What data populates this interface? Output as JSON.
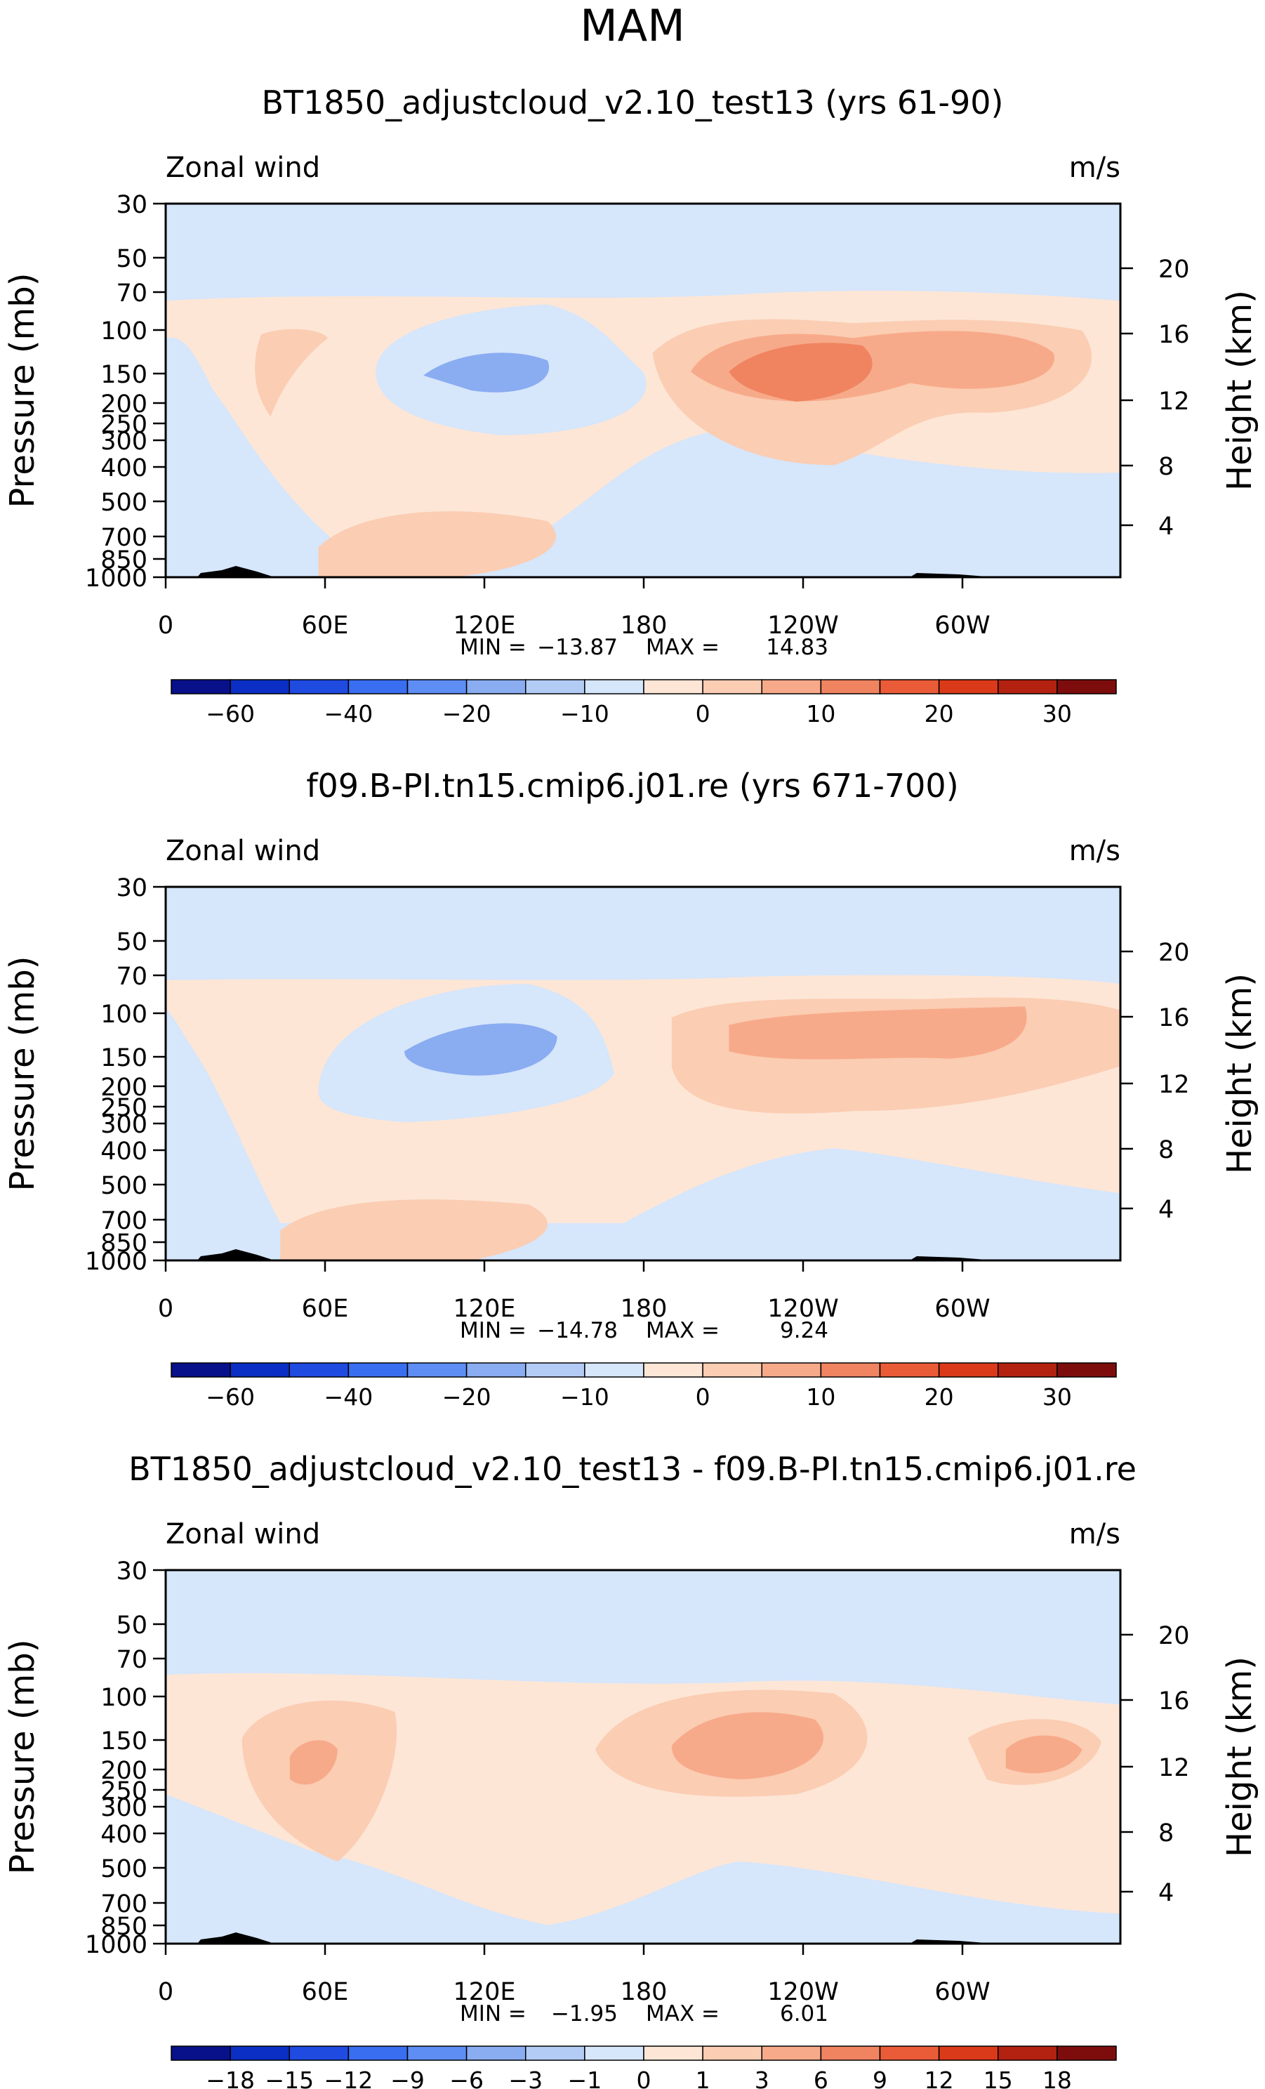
{
  "page_title": "MAM",
  "chart_data": [
    {
      "type": "heatmap",
      "title": "BT1850_adjustcloud_v2.10_test13 (yrs 61-90)",
      "left_label": "Zonal wind",
      "right_label": "m/s",
      "xlabel": "",
      "ylabel": "Pressure (mb)",
      "ylabel_right": "Height (km)",
      "x_ticks": [
        "0",
        "60E",
        "120E",
        "180",
        "120W",
        "60W"
      ],
      "y_ticks": [
        "30",
        "50",
        "70",
        "100",
        "150",
        "200",
        "250",
        "300",
        "400",
        "500",
        "700",
        "850",
        "1000"
      ],
      "y_ticks_right": [
        "20",
        "16",
        "12",
        "8",
        "4"
      ],
      "stats": {
        "min_label": "MIN =",
        "min": "−13.87",
        "max_label": "MAX =",
        "max": "14.83"
      },
      "colorbar_labels": [
        "−60",
        "−40",
        "−20",
        "−10",
        "0",
        "10",
        "20",
        "30"
      ]
    },
    {
      "type": "heatmap",
      "title": "f09.B-PI.tn15.cmip6.j01.re (yrs 671-700)",
      "left_label": "Zonal wind",
      "right_label": "m/s",
      "xlabel": "",
      "ylabel": "Pressure (mb)",
      "ylabel_right": "Height (km)",
      "x_ticks": [
        "0",
        "60E",
        "120E",
        "180",
        "120W",
        "60W"
      ],
      "y_ticks": [
        "30",
        "50",
        "70",
        "100",
        "150",
        "200",
        "250",
        "300",
        "400",
        "500",
        "700",
        "850",
        "1000"
      ],
      "y_ticks_right": [
        "20",
        "16",
        "12",
        "8",
        "4"
      ],
      "stats": {
        "min_label": "MIN =",
        "min": "−14.78",
        "max_label": "MAX =",
        "max": "9.24"
      },
      "colorbar_labels": [
        "−60",
        "−40",
        "−20",
        "−10",
        "0",
        "10",
        "20",
        "30"
      ]
    },
    {
      "type": "heatmap",
      "title": "BT1850_adjustcloud_v2.10_test13 - f09.B-PI.tn15.cmip6.j01.re",
      "left_label": "Zonal wind",
      "right_label": "m/s",
      "xlabel": "",
      "ylabel": "Pressure (mb)",
      "ylabel_right": "Height (km)",
      "x_ticks": [
        "0",
        "60E",
        "120E",
        "180",
        "120W",
        "60W"
      ],
      "y_ticks": [
        "30",
        "50",
        "70",
        "100",
        "150",
        "200",
        "250",
        "300",
        "400",
        "500",
        "700",
        "850",
        "1000"
      ],
      "y_ticks_right": [
        "20",
        "16",
        "12",
        "8",
        "4"
      ],
      "stats": {
        "min_label": "MIN =",
        "min": "−1.95",
        "max_label": "MAX =",
        "max": "6.01"
      },
      "colorbar_labels": [
        "−18",
        "−15",
        "−12",
        "−9",
        "−6",
        "−3",
        "−1",
        "0",
        "1",
        "3",
        "6",
        "9",
        "12",
        "15",
        "18"
      ]
    }
  ],
  "colors": {
    "colorbar": [
      "#08108a",
      "#0b2fc4",
      "#1f4be0",
      "#3a6ef0",
      "#5e8ef3",
      "#8aacf1",
      "#b3ccf5",
      "#d6e6fb",
      "#fde6d6",
      "#fbcdb3",
      "#f7aa8a",
      "#f08460",
      "#ea5b38",
      "#da3a1a",
      "#b32211",
      "#7d0d0d"
    ],
    "contour_light_blue": "#d6e6fb",
    "contour_blue": "#b3ccf5",
    "contour_mid_blue": "#8aacf1",
    "contour_light_orange": "#fde6d6",
    "contour_orange": "#fbcdb3",
    "contour_dark_orange": "#f7aa8a",
    "contour_deep_orange": "#f08460",
    "topography": "#000000"
  }
}
